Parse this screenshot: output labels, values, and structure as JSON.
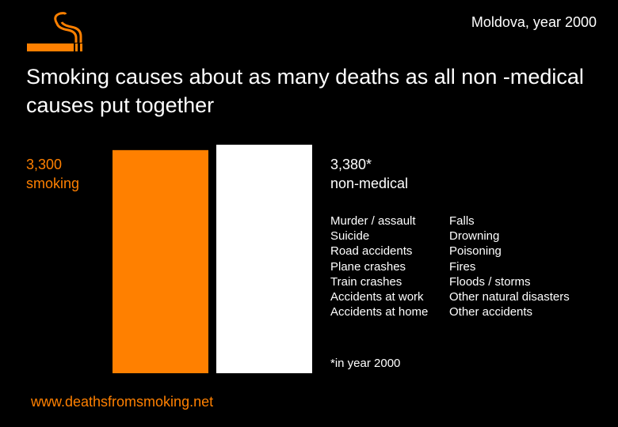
{
  "header": {
    "country_year": "Moldova, year 2000",
    "logo_icon": "cigarette-smoke-icon"
  },
  "title": "Smoking causes about as many deaths as all non -medical causes put together",
  "colors": {
    "smoking": "#ff8000",
    "non_medical": "#ffffff",
    "background": "#000000"
  },
  "chart_data": {
    "type": "bar",
    "categories": [
      "smoking",
      "non-medical"
    ],
    "values": [
      3300,
      3380
    ],
    "labels": [
      {
        "value": "3,300",
        "name": "smoking"
      },
      {
        "value": "3,380*",
        "name": "non-medical"
      }
    ],
    "footnote": "*in year 2000"
  },
  "causes": {
    "col1": [
      "Murder / assault",
      "Suicide",
      "Road accidents",
      "Plane crashes",
      "Train crashes",
      "Accidents at work",
      "Accidents at home"
    ],
    "col2": [
      "Falls",
      "Drowning",
      "Poisoning",
      "Fires",
      "Floods / storms",
      "Other natural disasters",
      "Other accidents"
    ]
  },
  "url": "www.deathsfromsmoking.net"
}
